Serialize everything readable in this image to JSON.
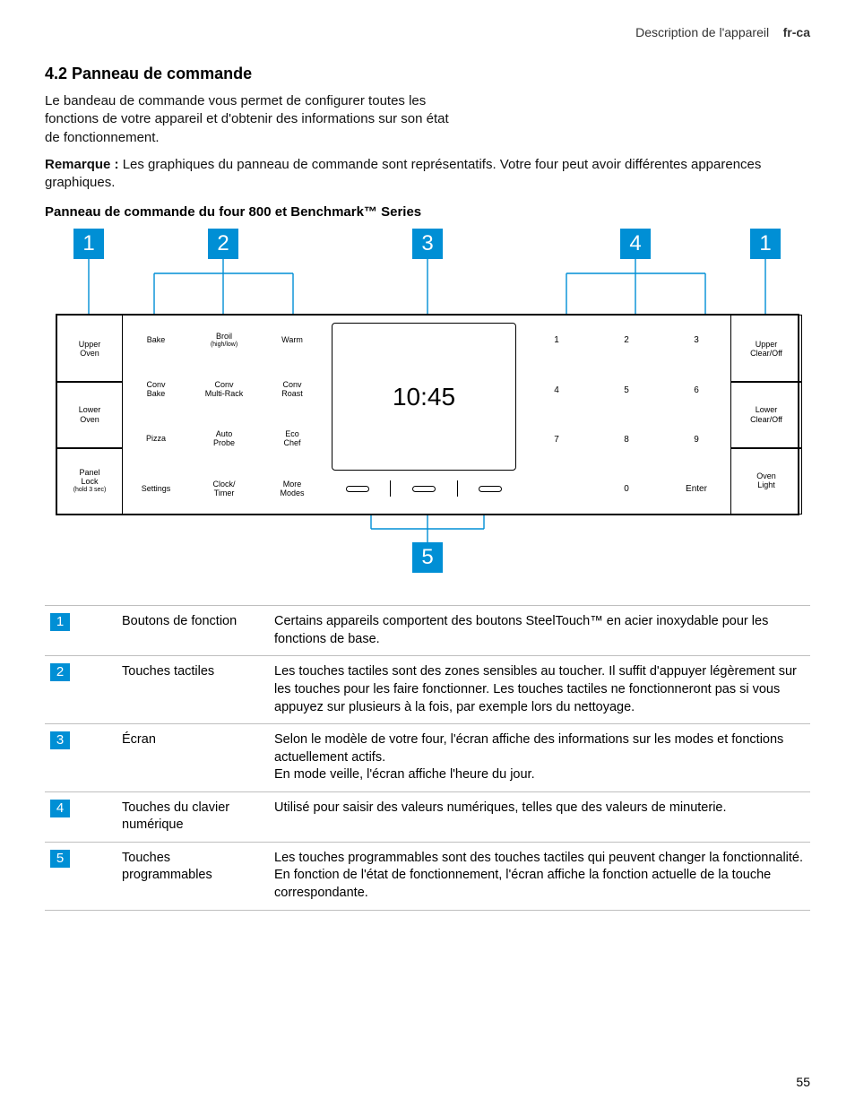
{
  "header": {
    "left": "Description de l'appareil",
    "bold": "fr-ca"
  },
  "heading": "4.2  Panneau de commande",
  "intro": "Le bandeau de commande vous permet de configurer toutes les fonctions de votre appareil et d'obtenir des informations sur son état de fonctionnement.",
  "note_label": "Remarque :",
  "note_text": " Les graphiques du panneau de commande sont représentatifs. Votre four peut avoir différentes apparences graphiques.",
  "subheading": "Panneau de commande du four 800 et Benchmark™ Series",
  "accent": "#008fd5",
  "diagram": {
    "callouts": {
      "c1a": "1",
      "c2": "2",
      "c3": "3",
      "c4": "4",
      "c1b": "1",
      "c5": "5"
    },
    "screen_time": "10:45",
    "left_buttons": [
      {
        "l1": "Upper",
        "l2": "Oven"
      },
      {
        "l1": "Lower",
        "l2": "Oven"
      },
      {
        "l1": "Panel",
        "l2": "Lock",
        "sub": "(hold 3 sec)"
      }
    ],
    "right_buttons": [
      {
        "l1": "Upper",
        "l2": "Clear/Off"
      },
      {
        "l1": "Lower",
        "l2": "Clear/Off"
      },
      {
        "l1": "Oven",
        "l2": "Light"
      }
    ],
    "touch_rows": [
      [
        {
          "l": "Bake"
        },
        {
          "l": "Broil",
          "s": "(high/low)"
        },
        {
          "l": "Warm"
        }
      ],
      [
        {
          "l": "Conv",
          "l2": "Bake"
        },
        {
          "l": "Conv",
          "l2": "Multi-Rack"
        },
        {
          "l": "Conv",
          "l2": "Roast"
        }
      ],
      [
        {
          "l": "Pizza"
        },
        {
          "l": "Auto",
          "l2": "Probe"
        },
        {
          "l": "Eco",
          "l2": "Chef"
        }
      ],
      [
        {
          "l": "Settings"
        },
        {
          "l": "Clock/",
          "l2": "Timer"
        },
        {
          "l": "More",
          "l2": "Modes"
        }
      ]
    ],
    "numpad": [
      [
        "1",
        "2",
        "3"
      ],
      [
        "4",
        "5",
        "6"
      ],
      [
        "7",
        "8",
        "9"
      ],
      [
        "",
        "0",
        "Enter"
      ]
    ]
  },
  "legend": [
    {
      "n": "1",
      "label": "Boutons de fonction",
      "desc": "Certains appareils comportent des boutons SteelTouch™ en acier inoxydable pour les fonctions de base."
    },
    {
      "n": "2",
      "label": "Touches tactiles",
      "desc": "Les touches tactiles sont des zones sensibles au toucher. Il suffit d'appuyer légèrement sur les touches pour les faire fonctionner. Les touches tactiles ne fonctionneront pas si vous appuyez sur plusieurs à la fois, par exemple lors du nettoyage."
    },
    {
      "n": "3",
      "label": "Écran",
      "desc": "Selon le modèle de votre four, l'écran affiche des informations sur les modes et fonctions actuellement actifs.\nEn mode veille, l'écran affiche l'heure du jour."
    },
    {
      "n": "4",
      "label": "Touches du clavier numérique",
      "desc": "Utilisé pour saisir des valeurs numériques, telles que des valeurs de minuterie."
    },
    {
      "n": "5",
      "label": "Touches programmables",
      "desc": "Les touches programmables sont des touches tactiles qui peuvent changer la fonctionnalité. En fonction de l'état de fonctionnement, l'écran affiche la fonction actuelle de la touche correspondante."
    }
  ],
  "page_number": "55"
}
